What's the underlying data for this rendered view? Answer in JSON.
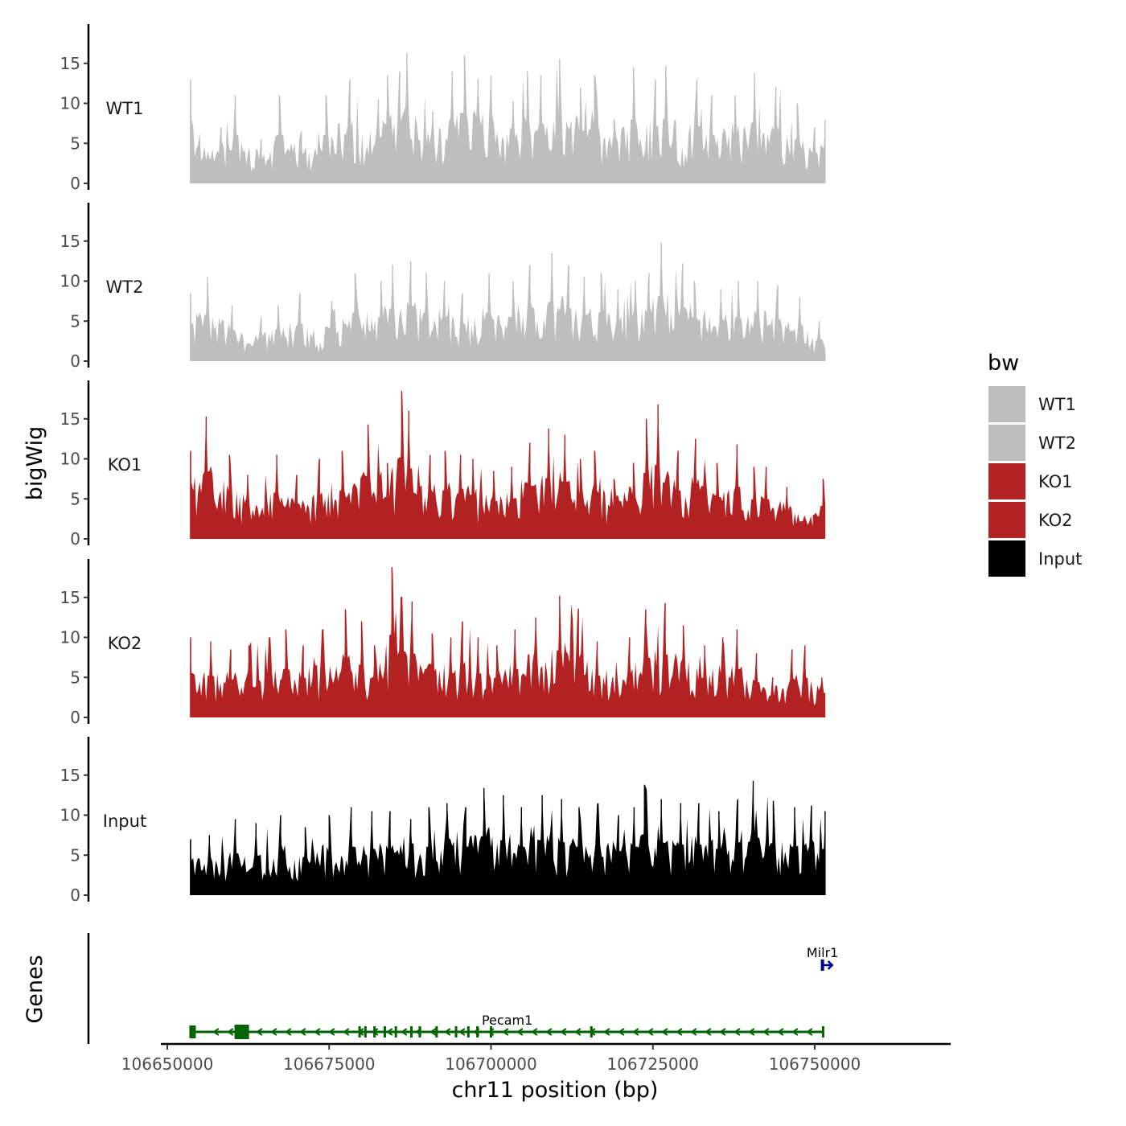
{
  "chart_data": {
    "type": "area",
    "chromosome": "chr11",
    "xlabel": "chr11 position (bp)",
    "ylabel_tracks": "bigWig",
    "ylabel_genes": "Genes",
    "xlim": [
      106649000,
      106771000
    ],
    "x_ticks": [
      106650000,
      106675000,
      106700000,
      106725000,
      106750000
    ],
    "x_tick_labels": [
      "106650000",
      "106675000",
      "106700000",
      "106725000",
      "106750000"
    ],
    "ylim": [
      0,
      19.5
    ],
    "y_ticks": [
      0,
      5,
      10,
      15
    ],
    "y_tick_labels": [
      "0",
      "5",
      "10",
      "15"
    ],
    "data_range": [
      106653500,
      106751700
    ],
    "tracks": [
      {
        "name": "WT1",
        "color": "#bebebe",
        "peaks": [
          [
            106653600,
            13
          ],
          [
            106658300,
            7
          ],
          [
            106660500,
            11
          ],
          [
            106664500,
            5.5
          ],
          [
            106667300,
            11
          ],
          [
            106670700,
            6.5
          ],
          [
            106674500,
            11
          ],
          [
            106678200,
            13
          ],
          [
            106682600,
            10.5
          ],
          [
            106684000,
            13.5
          ],
          [
            106685900,
            14
          ],
          [
            106687000,
            16.3
          ],
          [
            106691000,
            9
          ],
          [
            106694000,
            14
          ],
          [
            106695900,
            16
          ],
          [
            106698000,
            13
          ],
          [
            106700000,
            13.5
          ],
          [
            106703400,
            10.3
          ],
          [
            106705600,
            14
          ],
          [
            106707700,
            13.5
          ],
          [
            106710600,
            15.5
          ],
          [
            106713800,
            12
          ],
          [
            106716000,
            13.5
          ],
          [
            106719000,
            8
          ],
          [
            106722000,
            14.5
          ],
          [
            106725400,
            13
          ],
          [
            106727000,
            14.7
          ],
          [
            106731800,
            13
          ],
          [
            106734100,
            11
          ],
          [
            106737700,
            11
          ],
          [
            106740700,
            13.8
          ],
          [
            106744000,
            12
          ],
          [
            106747300,
            10
          ],
          [
            106750000,
            7
          ],
          [
            106751600,
            8
          ]
        ]
      },
      {
        "name": "WT2",
        "color": "#bebebe",
        "peaks": [
          [
            106653600,
            8.5
          ],
          [
            106656200,
            10.5
          ],
          [
            106660000,
            7
          ],
          [
            106664500,
            5.5
          ],
          [
            106667100,
            7
          ],
          [
            106670500,
            8.5
          ],
          [
            106675400,
            7.5
          ],
          [
            106679000,
            11
          ],
          [
            106683000,
            10
          ],
          [
            106684800,
            12
          ],
          [
            106687600,
            12.5
          ],
          [
            106690000,
            11
          ],
          [
            106692800,
            10
          ],
          [
            106695600,
            8.5
          ],
          [
            106699700,
            11
          ],
          [
            106703400,
            10
          ],
          [
            106706000,
            12
          ],
          [
            106709400,
            13.5
          ],
          [
            106712000,
            12
          ],
          [
            106714400,
            10.5
          ],
          [
            106717000,
            11
          ],
          [
            106719600,
            9
          ],
          [
            106722300,
            10
          ],
          [
            106724400,
            11
          ],
          [
            106726300,
            14.8
          ],
          [
            106729600,
            12.2
          ],
          [
            106731400,
            10
          ],
          [
            106735500,
            9
          ],
          [
            106738200,
            10
          ],
          [
            106741200,
            10
          ],
          [
            106744300,
            9.5
          ],
          [
            106747700,
            8
          ],
          [
            106750700,
            5
          ],
          [
            106751600,
            1
          ]
        ]
      },
      {
        "name": "KO1",
        "color": "#b22222",
        "peaks": [
          [
            106653600,
            11
          ],
          [
            106656000,
            15.3
          ],
          [
            106659600,
            10.5
          ],
          [
            106662400,
            8
          ],
          [
            106666900,
            10.5
          ],
          [
            106670000,
            8
          ],
          [
            106673500,
            10
          ],
          [
            106677000,
            11
          ],
          [
            106681000,
            14.3
          ],
          [
            106684000,
            9.5
          ],
          [
            106686200,
            18.5
          ],
          [
            106687300,
            16
          ],
          [
            106690600,
            10.5
          ],
          [
            106692900,
            11
          ],
          [
            106695300,
            10.5
          ],
          [
            106697200,
            10
          ],
          [
            106700400,
            8.5
          ],
          [
            106703200,
            9
          ],
          [
            106706000,
            12
          ],
          [
            106708900,
            13.8
          ],
          [
            106711400,
            13
          ],
          [
            106713800,
            10
          ],
          [
            106716000,
            11
          ],
          [
            106719000,
            7.5
          ],
          [
            106722000,
            9.5
          ],
          [
            106724000,
            15
          ],
          [
            106725800,
            16.8
          ],
          [
            106728900,
            11
          ],
          [
            106731600,
            12.5
          ],
          [
            106734900,
            9.5
          ],
          [
            106738000,
            11.8
          ],
          [
            106740600,
            9
          ],
          [
            106742500,
            9
          ],
          [
            106745700,
            6.5
          ],
          [
            106749800,
            3
          ],
          [
            106751300,
            7.5
          ]
        ]
      },
      {
        "name": "KO2",
        "color": "#b22222",
        "peaks": [
          [
            106653600,
            10
          ],
          [
            106656700,
            9.5
          ],
          [
            106659800,
            8.5
          ],
          [
            106662600,
            9
          ],
          [
            106665800,
            10
          ],
          [
            106668300,
            11
          ],
          [
            106671000,
            9
          ],
          [
            106674000,
            11
          ],
          [
            106677500,
            13.5
          ],
          [
            106680000,
            12
          ],
          [
            106682000,
            9
          ],
          [
            106684700,
            18.8
          ],
          [
            106686100,
            15
          ],
          [
            106687800,
            14.5
          ],
          [
            106690900,
            10.5
          ],
          [
            106693800,
            10
          ],
          [
            106695600,
            12
          ],
          [
            106698000,
            10
          ],
          [
            106700900,
            9
          ],
          [
            106703700,
            11
          ],
          [
            106706900,
            12.5
          ],
          [
            106710600,
            15.2
          ],
          [
            106713500,
            13.6
          ],
          [
            106716400,
            9.5
          ],
          [
            106718800,
            5
          ],
          [
            106721400,
            10
          ],
          [
            106723900,
            13.5
          ],
          [
            106726900,
            14.3
          ],
          [
            106729700,
            11.5
          ],
          [
            106733000,
            9
          ],
          [
            106735800,
            10
          ],
          [
            106738000,
            11
          ],
          [
            106741000,
            8
          ],
          [
            106743500,
            5
          ],
          [
            106746500,
            8.5
          ],
          [
            106748500,
            9
          ],
          [
            106751100,
            5
          ]
        ]
      },
      {
        "name": "Input",
        "color": "#000000",
        "peaks": [
          [
            106653600,
            7
          ],
          [
            106656500,
            7.5
          ],
          [
            106660500,
            9.5
          ],
          [
            106663700,
            9
          ],
          [
            106667500,
            10
          ],
          [
            106671300,
            8.5
          ],
          [
            106675000,
            10
          ],
          [
            106678400,
            11
          ],
          [
            106681600,
            10.5
          ],
          [
            106684400,
            10.5
          ],
          [
            106687600,
            9.5
          ],
          [
            106690400,
            11
          ],
          [
            106693200,
            11.5
          ],
          [
            106696100,
            11
          ],
          [
            106698900,
            13.4
          ],
          [
            106701900,
            12.5
          ],
          [
            106704700,
            11
          ],
          [
            106707900,
            12.5
          ],
          [
            106710900,
            12
          ],
          [
            106713600,
            11
          ],
          [
            106716500,
            11.5
          ],
          [
            106719700,
            10
          ],
          [
            106722100,
            11
          ],
          [
            106723700,
            13.8
          ],
          [
            106726300,
            12
          ],
          [
            106729300,
            11.5
          ],
          [
            106732100,
            11.5
          ],
          [
            106735200,
            10.5
          ],
          [
            106738100,
            12
          ],
          [
            106740500,
            14.3
          ],
          [
            106743600,
            11.8
          ],
          [
            106746900,
            11
          ],
          [
            106749500,
            11.2
          ],
          [
            106751600,
            10.5
          ]
        ]
      }
    ],
    "legend": {
      "title": "bw",
      "position": "right",
      "entries": [
        {
          "label": "WT1",
          "color": "#bebebe"
        },
        {
          "label": "WT2",
          "color": "#bebebe"
        },
        {
          "label": "KO1",
          "color": "#b22222"
        },
        {
          "label": "KO2",
          "color": "#b22222"
        },
        {
          "label": "Input",
          "color": "#000000"
        }
      ]
    },
    "genes": [
      {
        "name": "Pecam1",
        "strand": "-",
        "start": 106653700,
        "end": 106751300,
        "color": "#006400",
        "exons": [
          106653900,
          106661500,
          106679700,
          106680600,
          106682000,
          106683600,
          106685300,
          106687700,
          106689000,
          106691600,
          106694600,
          106696500,
          106697900,
          106700000,
          106715500,
          106751300
        ]
      },
      {
        "name": "Milr1",
        "strand": "+",
        "start": 106751000,
        "end": 106752200,
        "color": "#00008b",
        "exons": [
          106751200
        ]
      }
    ]
  }
}
